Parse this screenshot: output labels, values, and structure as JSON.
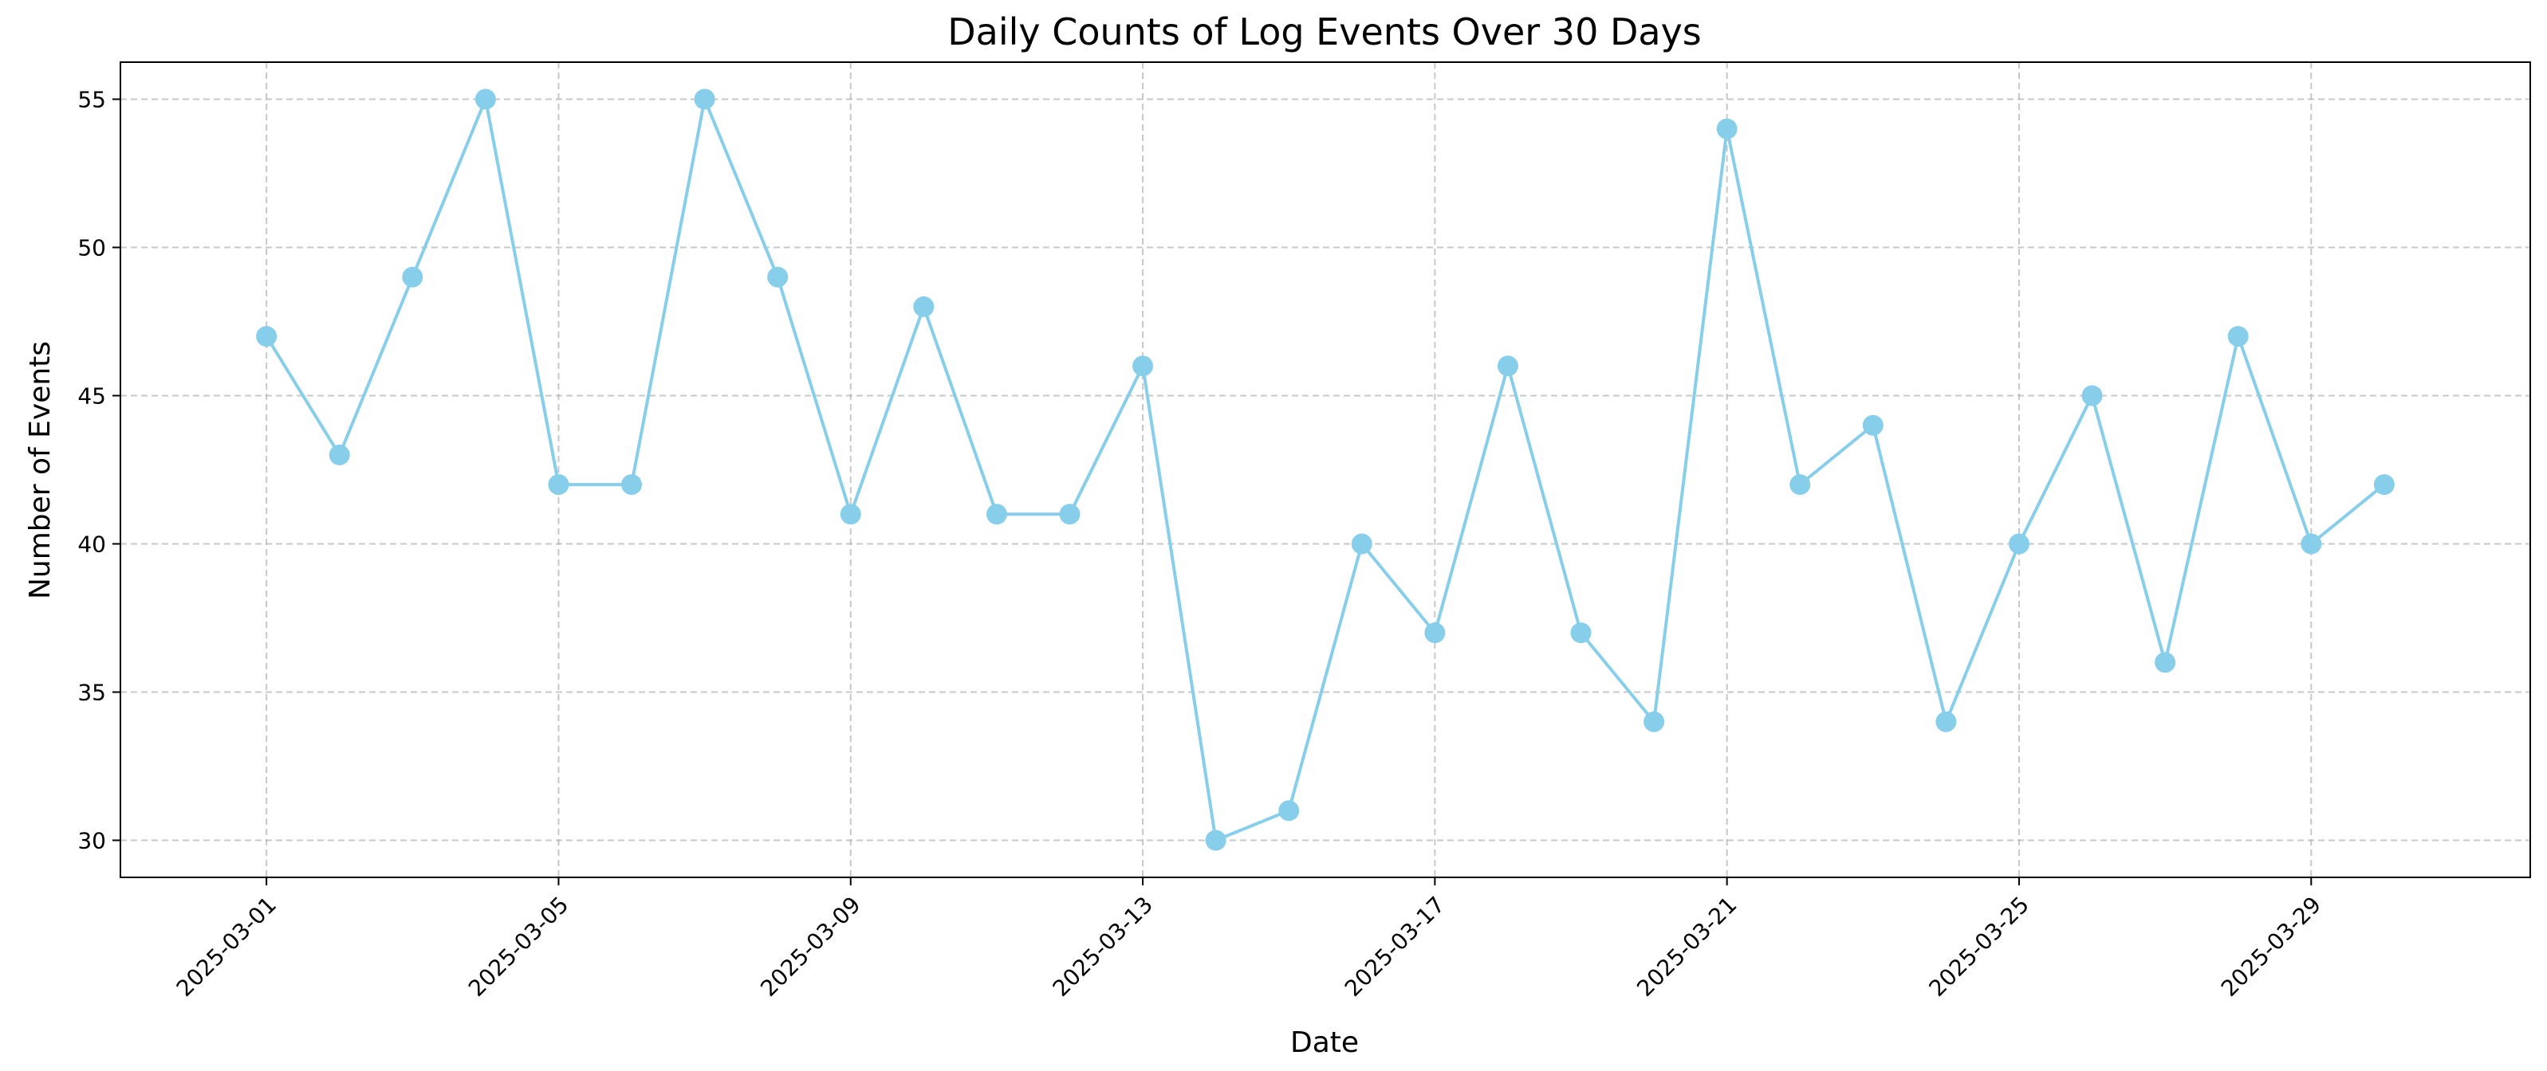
{
  "chart_data": {
    "type": "line",
    "title": "Daily Counts of Log Events Over 30 Days",
    "xlabel": "Date",
    "ylabel": "Number of Events",
    "x": [
      "2025-03-01",
      "2025-03-02",
      "2025-03-03",
      "2025-03-04",
      "2025-03-05",
      "2025-03-06",
      "2025-03-07",
      "2025-03-08",
      "2025-03-09",
      "2025-03-10",
      "2025-03-11",
      "2025-03-12",
      "2025-03-13",
      "2025-03-14",
      "2025-03-15",
      "2025-03-16",
      "2025-03-17",
      "2025-03-18",
      "2025-03-19",
      "2025-03-20",
      "2025-03-21",
      "2025-03-22",
      "2025-03-23",
      "2025-03-24",
      "2025-03-25",
      "2025-03-26",
      "2025-03-27",
      "2025-03-28",
      "2025-03-29",
      "2025-03-30"
    ],
    "series": [
      {
        "values": [
          47,
          43,
          49,
          55,
          42,
          42,
          55,
          49,
          41,
          48,
          41,
          41,
          46,
          30,
          31,
          40,
          37,
          46,
          37,
          34,
          54,
          42,
          44,
          34,
          40,
          45,
          36,
          47,
          40,
          42
        ],
        "color": "#87CEEB",
        "marker": "circle"
      }
    ],
    "xticks": [
      "2025-03-01",
      "2025-03-05",
      "2025-03-09",
      "2025-03-13",
      "2025-03-17",
      "2025-03-21",
      "2025-03-25",
      "2025-03-29"
    ],
    "yticks": [
      30,
      35,
      40,
      45,
      50,
      55
    ],
    "xlim": [
      "2025-02-27",
      "2025-04-01"
    ],
    "ylim": [
      28.75,
      56.25
    ],
    "grid": true,
    "grid_style": "dashed",
    "legend": false
  }
}
